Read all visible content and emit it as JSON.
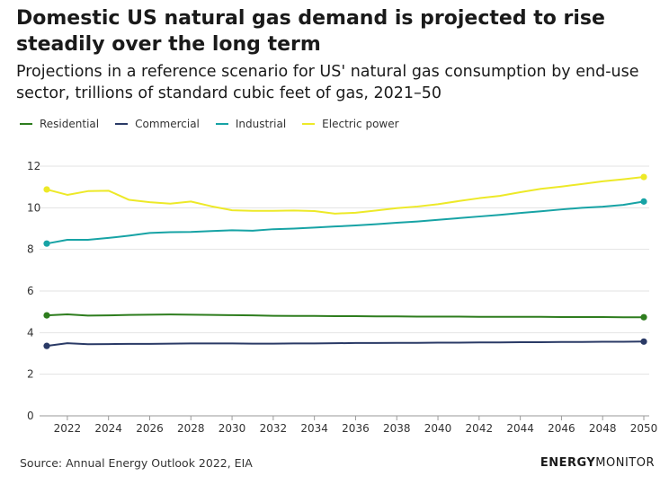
{
  "header": {
    "title": "Domestic US natural gas demand is projected to rise steadily over the long term",
    "subtitle": "Projections in a reference scenario for US' natural gas consumption by end-use sector, trillions of standard cubic feet of gas, 2021–50"
  },
  "footer": {
    "source": "Source: Annual Energy Outlook 2022, EIA",
    "brand_bold": "ENERGY",
    "brand_light": "MONITOR"
  },
  "chart_data": {
    "type": "line",
    "x": [
      2021,
      2022,
      2023,
      2024,
      2025,
      2026,
      2027,
      2028,
      2029,
      2030,
      2031,
      2032,
      2033,
      2034,
      2035,
      2036,
      2037,
      2038,
      2039,
      2040,
      2041,
      2042,
      2043,
      2044,
      2045,
      2046,
      2047,
      2048,
      2049,
      2050
    ],
    "series": [
      {
        "name": "Residential",
        "color": "#2e7d1e",
        "values": [
          4.83,
          4.88,
          4.82,
          4.83,
          4.85,
          4.86,
          4.87,
          4.86,
          4.85,
          4.84,
          4.83,
          4.81,
          4.8,
          4.8,
          4.79,
          4.79,
          4.78,
          4.78,
          4.77,
          4.77,
          4.77,
          4.76,
          4.76,
          4.76,
          4.76,
          4.75,
          4.75,
          4.75,
          4.74,
          4.74
        ]
      },
      {
        "name": "Commercial",
        "color": "#2a3a66",
        "values": [
          3.36,
          3.49,
          3.44,
          3.45,
          3.46,
          3.46,
          3.47,
          3.48,
          3.48,
          3.48,
          3.47,
          3.47,
          3.48,
          3.48,
          3.49,
          3.5,
          3.5,
          3.51,
          3.51,
          3.52,
          3.52,
          3.53,
          3.53,
          3.54,
          3.54,
          3.55,
          3.55,
          3.56,
          3.56,
          3.57
        ]
      },
      {
        "name": "Industrial",
        "color": "#17a3a5",
        "values": [
          8.28,
          8.46,
          8.46,
          8.55,
          8.66,
          8.79,
          8.83,
          8.84,
          8.88,
          8.92,
          8.9,
          8.97,
          9.0,
          9.05,
          9.1,
          9.15,
          9.21,
          9.28,
          9.34,
          9.42,
          9.5,
          9.58,
          9.66,
          9.75,
          9.83,
          9.92,
          10.0,
          10.05,
          10.14,
          10.3
        ]
      },
      {
        "name": "Electric power",
        "color": "#ede928",
        "values": [
          10.88,
          10.62,
          10.8,
          10.82,
          10.38,
          10.27,
          10.2,
          10.3,
          10.07,
          9.88,
          9.85,
          9.85,
          9.87,
          9.84,
          9.72,
          9.76,
          9.87,
          9.98,
          10.06,
          10.17,
          10.32,
          10.46,
          10.57,
          10.75,
          10.91,
          11.02,
          11.14,
          11.27,
          11.37,
          11.48
        ]
      }
    ],
    "y_ticks": [
      "0",
      "2",
      "4",
      "6",
      "8",
      "10",
      "12"
    ],
    "x_ticks": [
      "2022",
      "2024",
      "2026",
      "2028",
      "2030",
      "2032",
      "2034",
      "2036",
      "2038",
      "2040",
      "2042",
      "2044",
      "2046",
      "2048",
      "2050"
    ],
    "ylim": [
      0,
      12
    ],
    "xlim": [
      2021,
      2050
    ],
    "grid": "horizontal",
    "legend_position": "top-left",
    "endpoint_markers": true
  }
}
